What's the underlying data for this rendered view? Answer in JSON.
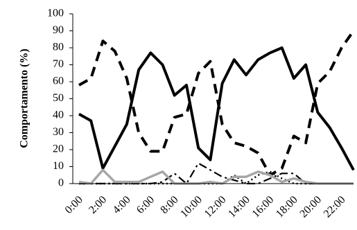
{
  "chart_data": {
    "type": "line",
    "title": "",
    "xlabel": "",
    "ylabel": "Comportamento (%)",
    "ylim": [
      0,
      100
    ],
    "yticks": [
      0,
      10,
      20,
      30,
      40,
      50,
      60,
      70,
      80,
      90,
      100
    ],
    "ytick_labels": [
      "0",
      "10",
      "20",
      "30",
      "40",
      "50",
      "60",
      "70",
      "80",
      "90",
      "100"
    ],
    "x": [
      "0:00",
      "1:00",
      "2:00",
      "3:00",
      "4:00",
      "5:00",
      "6:00",
      "7:00",
      "8:00",
      "9:00",
      "10:00",
      "11:00",
      "12:00",
      "13:00",
      "14:00",
      "15:00",
      "16:00",
      "17:00",
      "18:00",
      "19:00",
      "20:00",
      "21:00",
      "22:00",
      "23:00"
    ],
    "xtick_labels": [
      "0:00",
      "2:00",
      "4:00",
      "6:00",
      "8:00",
      "10:00",
      "12:00",
      "14:00",
      "16:00",
      "18:00",
      "20:00",
      "22:00"
    ],
    "grid": false,
    "legend": "none",
    "series": [
      {
        "style": "solid-black",
        "color": "#000000",
        "values": [
          41,
          37,
          9,
          22,
          35,
          67,
          77,
          70,
          52,
          58,
          21,
          14,
          59,
          73,
          64,
          73,
          77,
          80,
          62,
          70,
          42,
          33,
          21,
          8
        ]
      },
      {
        "style": "dashed-black",
        "color": "#000000",
        "values": [
          58,
          62,
          84,
          78,
          62,
          30,
          19,
          19,
          39,
          41,
          65,
          72,
          35,
          24,
          22,
          18,
          5,
          9,
          28,
          24,
          59,
          66,
          80,
          90
        ]
      },
      {
        "style": "dash-dot-black",
        "color": "#000000",
        "values": [
          0,
          0,
          0,
          0,
          0,
          0,
          0,
          1,
          6,
          0,
          12,
          8,
          4,
          2,
          0,
          0,
          3,
          6,
          6,
          0,
          0,
          0,
          0,
          0
        ]
      },
      {
        "style": "dotted-black",
        "color": "#000000",
        "values": [
          0,
          0,
          0,
          0,
          0,
          0,
          0,
          0,
          0,
          0,
          0,
          0,
          0,
          5,
          0,
          5,
          7,
          3,
          0,
          0,
          0,
          0,
          0,
          0
        ]
      },
      {
        "style": "solid-gray",
        "color": "#a6a6a6",
        "values": [
          1,
          0,
          8,
          1,
          1,
          1,
          4,
          7,
          0,
          0,
          0,
          1,
          0,
          4,
          4,
          7,
          5,
          1,
          3,
          1,
          0,
          0,
          0,
          0
        ]
      }
    ]
  }
}
